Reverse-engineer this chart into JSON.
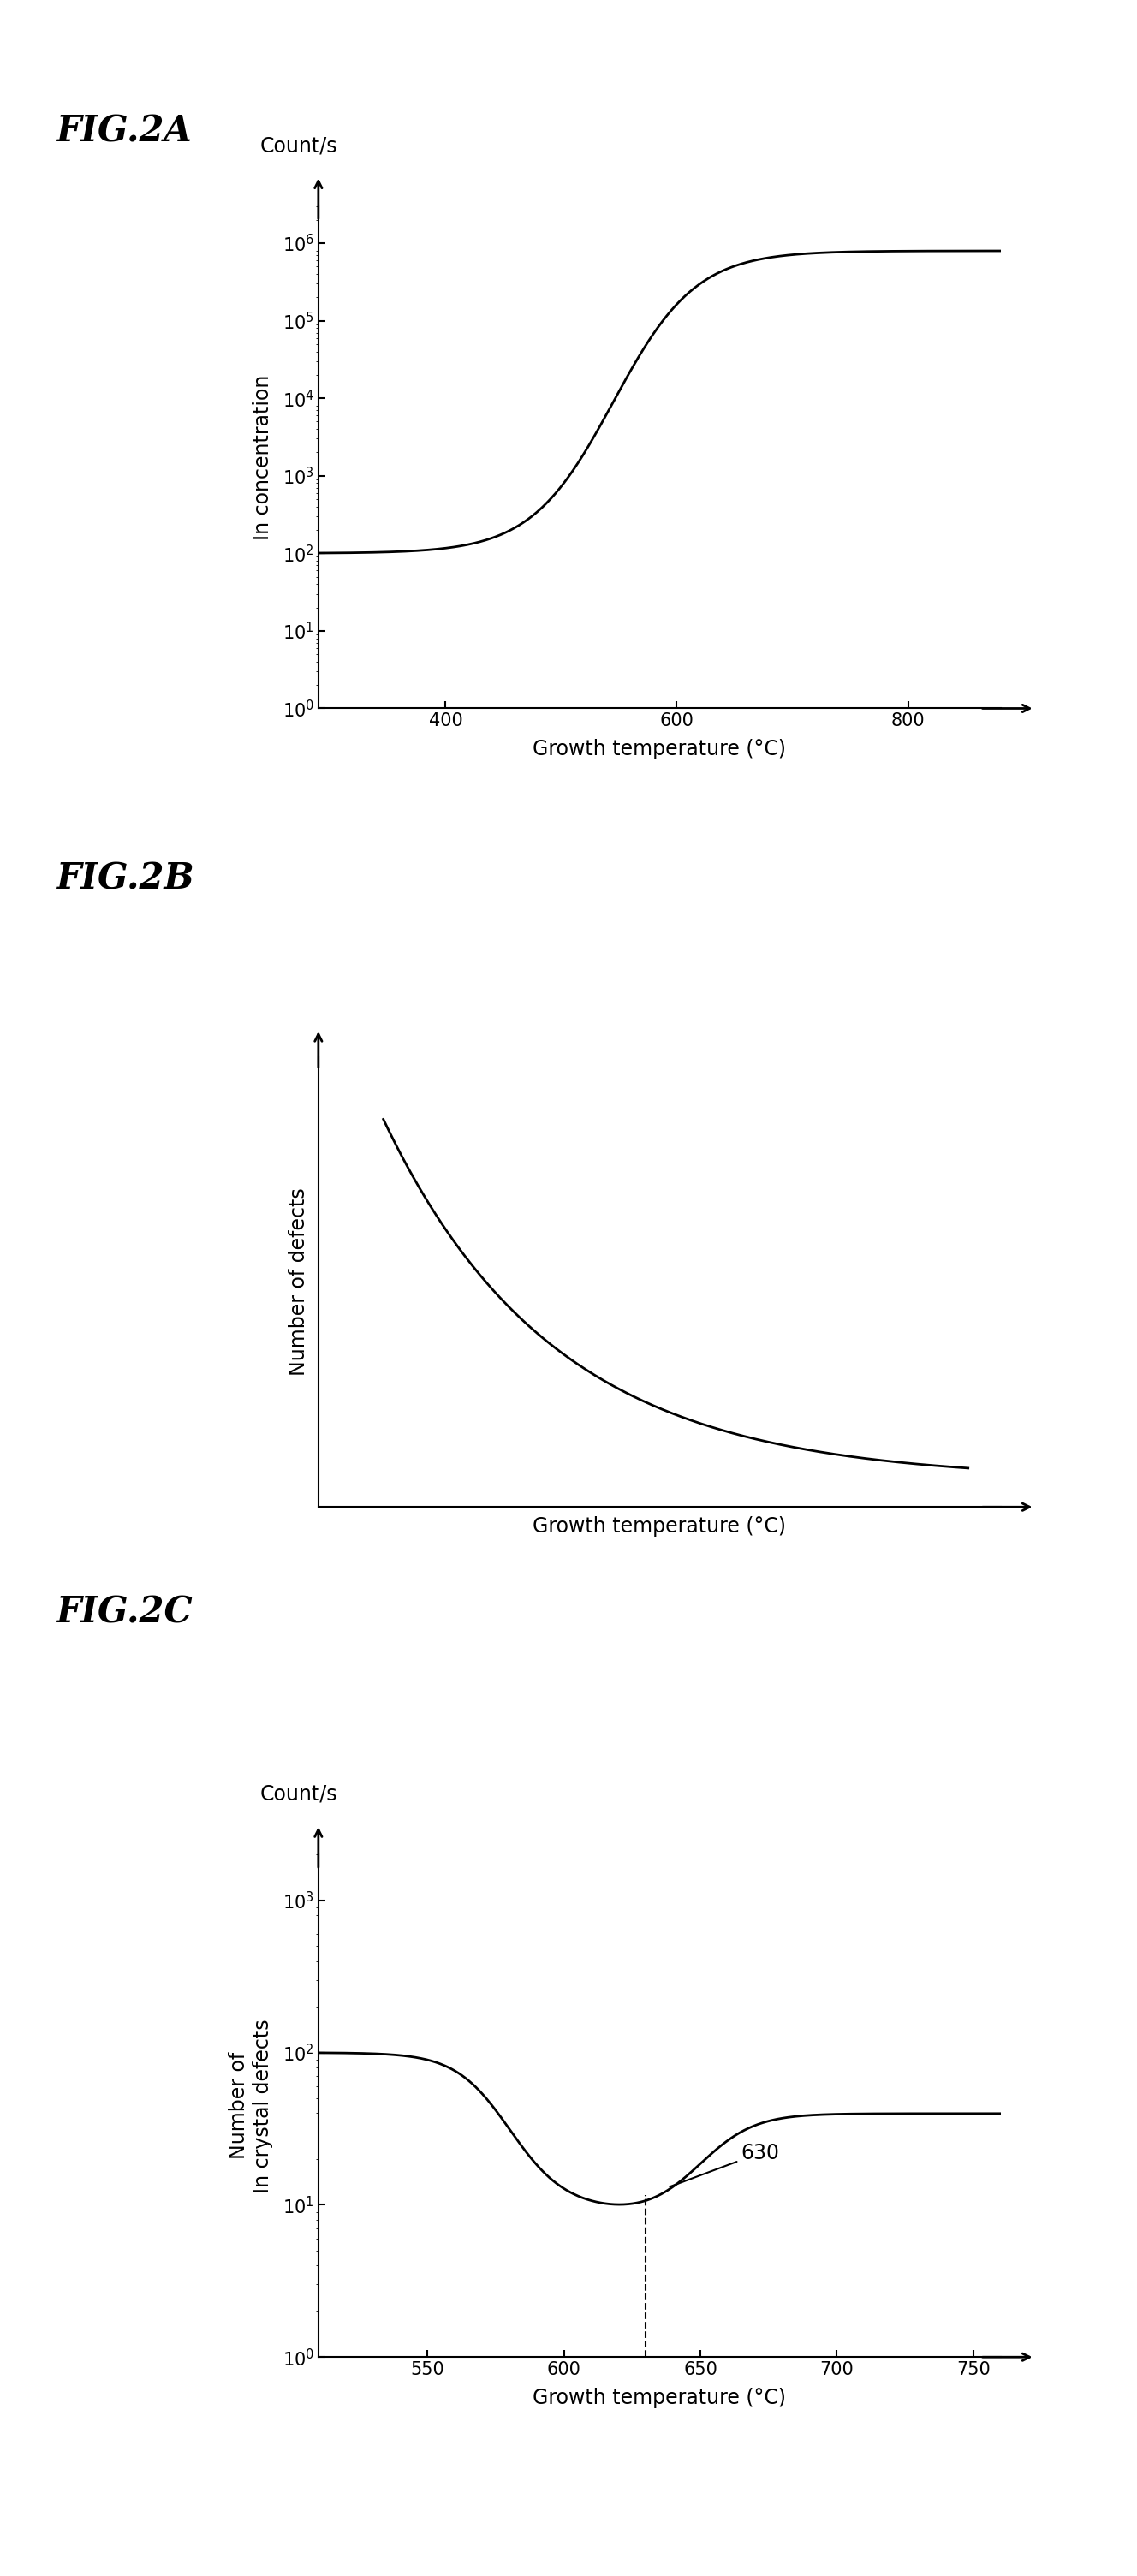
{
  "fig2a_title": "FIG.2A",
  "fig2b_title": "FIG.2B",
  "fig2c_title": "FIG.2C",
  "fig2a_ylabel": "In concentration",
  "fig2a_countlabel": "Count/s",
  "fig2a_xlabel": "Growth temperature (°C)",
  "fig2a_yticks": [
    1.0,
    10.0,
    100.0,
    1000.0,
    10000.0,
    100000.0,
    1000000.0
  ],
  "fig2a_xticks": [
    400,
    600,
    800
  ],
  "fig2a_xlim": [
    290,
    880
  ],
  "fig2a_ylim": [
    1.0,
    3000000.0
  ],
  "fig2b_ylabel": "Number of defects",
  "fig2b_xlabel": "Growth temperature (°C)",
  "fig2c_ylabel": "Number of\nIn crystal defects",
  "fig2c_countlabel": "Count/s",
  "fig2c_xlabel": "Growth temperature (°C)",
  "fig2c_yticks": [
    1.0,
    10.0,
    100.0,
    1000.0
  ],
  "fig2c_xticks": [
    550,
    600,
    650,
    700,
    750
  ],
  "fig2c_xlim": [
    510,
    760
  ],
  "fig2c_ylim": [
    1.0,
    2000.0
  ],
  "fig2c_annotation": "630",
  "background_color": "#ffffff",
  "line_color": "#000000",
  "title_fontsize": 30,
  "label_fontsize": 17,
  "tick_fontsize": 15
}
